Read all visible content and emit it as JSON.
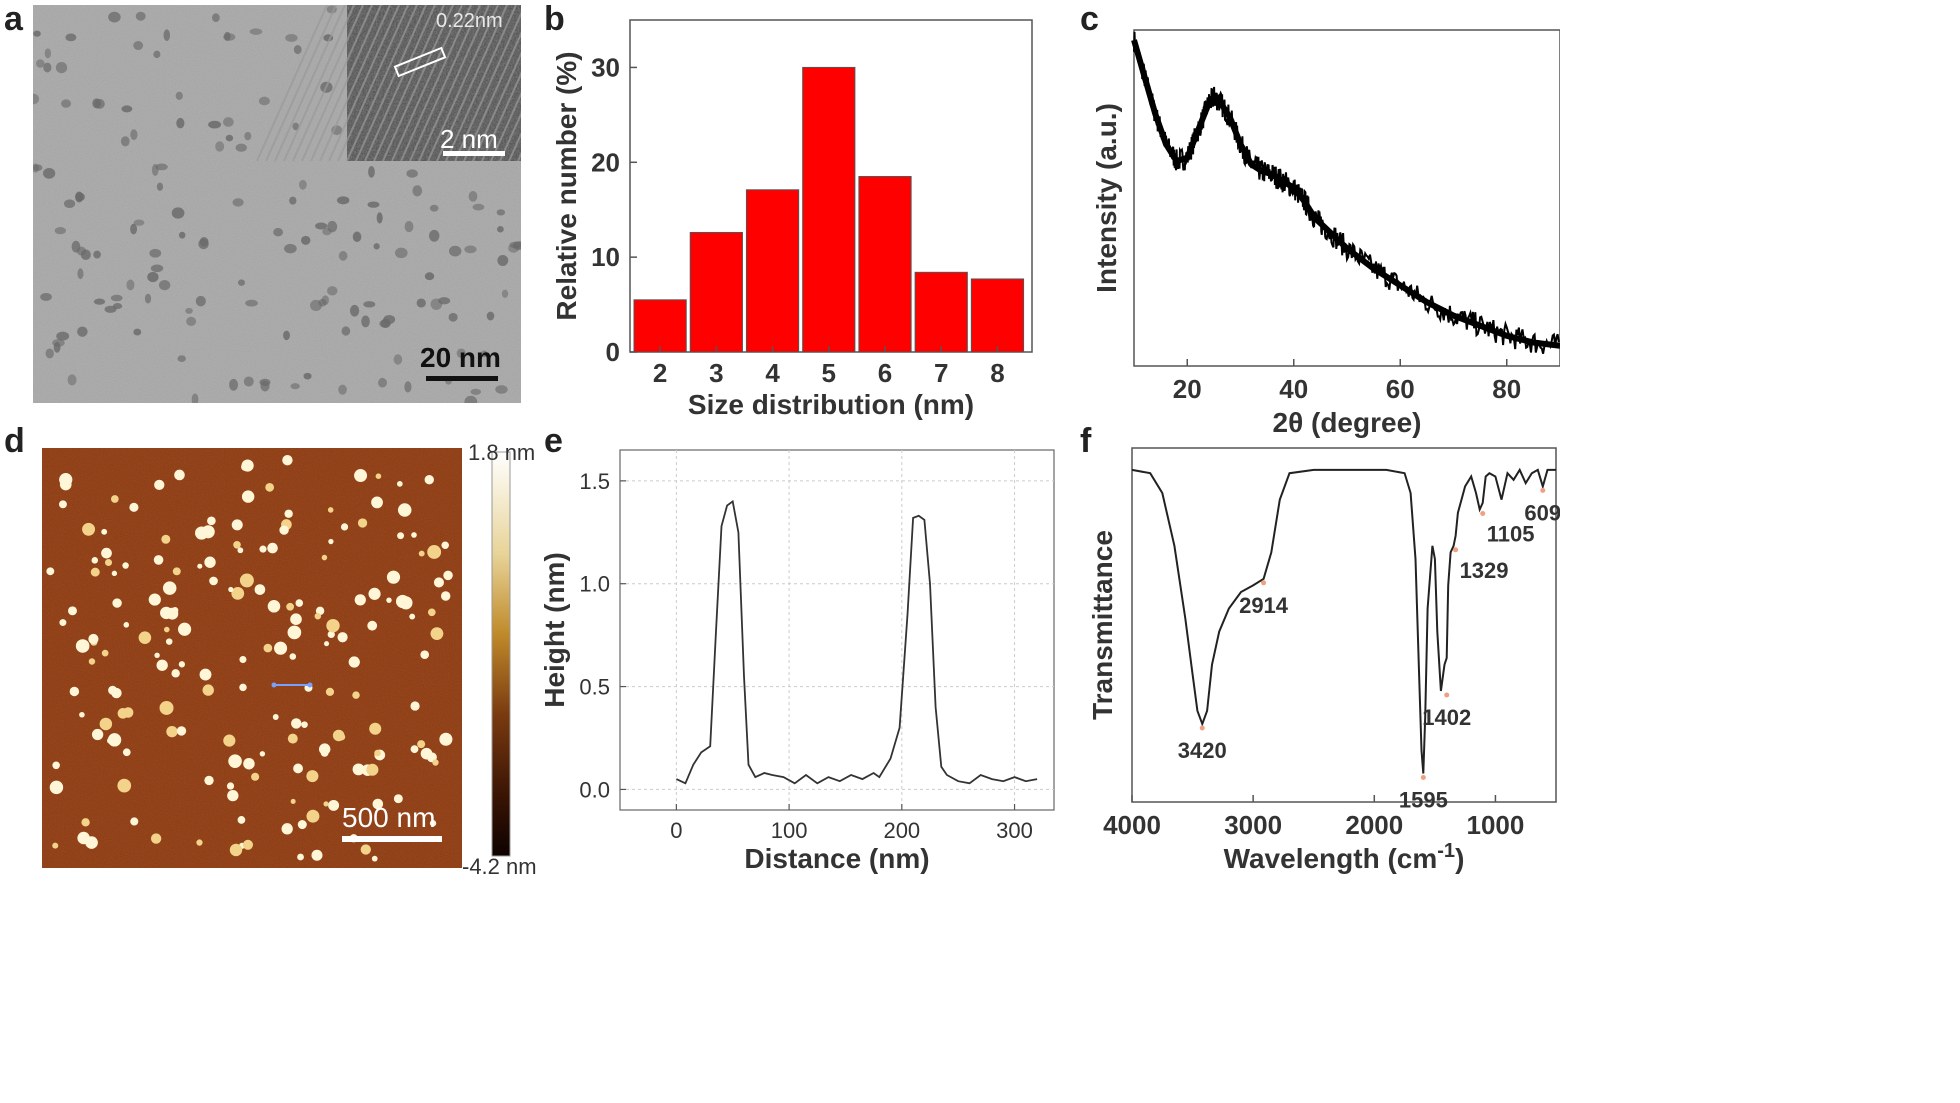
{
  "panels": {
    "a": {
      "letter": "a",
      "scale_bar": "20 nm",
      "inset_scale_bar": "2 nm",
      "inset_spacing": "0.22nm"
    },
    "b": {
      "letter": "b",
      "chart_data": {
        "type": "bar",
        "title": "",
        "xlabel": "Size distribution (nm)",
        "ylabel": "Relative number (%)",
        "categories": [
          "2",
          "3",
          "4",
          "5",
          "6",
          "7",
          "8"
        ],
        "values": [
          5.5,
          12.6,
          17.1,
          30.0,
          18.5,
          8.4,
          7.7
        ],
        "ylim": [
          0,
          35
        ],
        "yticks": [
          0,
          10,
          20,
          30
        ],
        "bar_color": "#ff0000"
      }
    },
    "c": {
      "letter": "c",
      "chart_data": {
        "type": "line",
        "title": "",
        "xlabel": "2θ (degree)",
        "ylabel": "Intensity (a.u.)",
        "xlim": [
          10,
          90
        ],
        "xticks": [
          20,
          40,
          60,
          80
        ],
        "x": [
          10,
          12,
          14,
          16,
          18,
          20,
          22,
          24,
          25,
          26,
          28,
          30,
          32,
          34,
          36,
          38,
          40,
          42,
          44,
          46,
          50,
          55,
          60,
          65,
          70,
          75,
          80,
          85,
          90
        ],
        "y": [
          0.97,
          0.86,
          0.75,
          0.66,
          0.61,
          0.62,
          0.7,
          0.78,
          0.8,
          0.79,
          0.74,
          0.66,
          0.6,
          0.58,
          0.57,
          0.55,
          0.53,
          0.49,
          0.44,
          0.41,
          0.35,
          0.29,
          0.24,
          0.19,
          0.15,
          0.12,
          0.09,
          0.07,
          0.06
        ],
        "line_color": "#000000"
      }
    },
    "d": {
      "letter": "d",
      "scale_bar": "500 nm",
      "colorbar_max": "1.8 nm",
      "colorbar_min": "-4.2 nm"
    },
    "e": {
      "letter": "e",
      "chart_data": {
        "type": "line",
        "title": "",
        "xlabel": "Distance (nm)",
        "ylabel": "Height (nm)",
        "xlim": [
          -50,
          335
        ],
        "ylim": [
          -0.1,
          1.65
        ],
        "xticks": [
          0,
          100,
          200,
          300
        ],
        "yticks": [
          "0.0",
          "0.5",
          "1.0",
          "1.5"
        ],
        "x": [
          0,
          8,
          15,
          22,
          30,
          35,
          40,
          45,
          50,
          55,
          60,
          64,
          70,
          78,
          85,
          95,
          105,
          115,
          125,
          135,
          145,
          155,
          165,
          175,
          180,
          190,
          198,
          205,
          210,
          215,
          220,
          225,
          230,
          235,
          240,
          250,
          260,
          270,
          280,
          290,
          300,
          310,
          320
        ],
        "y": [
          0.05,
          0.03,
          0.12,
          0.18,
          0.21,
          0.75,
          1.28,
          1.38,
          1.4,
          1.25,
          0.55,
          0.12,
          0.06,
          0.08,
          0.07,
          0.06,
          0.03,
          0.07,
          0.03,
          0.06,
          0.04,
          0.07,
          0.05,
          0.08,
          0.06,
          0.15,
          0.3,
          0.85,
          1.32,
          1.33,
          1.31,
          1.0,
          0.4,
          0.11,
          0.07,
          0.04,
          0.03,
          0.07,
          0.05,
          0.04,
          0.06,
          0.04,
          0.05
        ],
        "line_color": "#333333"
      }
    },
    "f": {
      "letter": "f",
      "chart_data": {
        "type": "line",
        "title": "",
        "xlabel": "Wavelength (cm-1)",
        "xlabel_main": "Wavelength (cm",
        "xlabel_sup": "-1",
        "xlabel_close": ")",
        "ylabel": "Transmittance",
        "xlim": [
          4000,
          500
        ],
        "xticks": [
          4000,
          3000,
          2000,
          1000
        ],
        "x": [
          4000,
          3850,
          3750,
          3650,
          3560,
          3500,
          3460,
          3420,
          3380,
          3340,
          3280,
          3200,
          3100,
          3000,
          2914,
          2850,
          2780,
          2700,
          2500,
          2200,
          1900,
          1750,
          1700,
          1660,
          1630,
          1610,
          1595,
          1580,
          1560,
          1520,
          1500,
          1480,
          1450,
          1420,
          1402,
          1390,
          1370,
          1345,
          1329,
          1310,
          1280,
          1250,
          1200,
          1160,
          1130,
          1105,
          1080,
          1050,
          1000,
          950,
          900,
          850,
          800,
          750,
          700,
          650,
          609,
          570,
          500
        ],
        "y": [
          0.97,
          0.96,
          0.9,
          0.74,
          0.52,
          0.35,
          0.24,
          0.2,
          0.24,
          0.38,
          0.48,
          0.55,
          0.6,
          0.62,
          0.64,
          0.72,
          0.88,
          0.96,
          0.97,
          0.97,
          0.97,
          0.96,
          0.9,
          0.7,
          0.35,
          0.12,
          0.05,
          0.22,
          0.55,
          0.74,
          0.7,
          0.48,
          0.3,
          0.38,
          0.4,
          0.62,
          0.72,
          0.74,
          0.77,
          0.84,
          0.88,
          0.92,
          0.95,
          0.9,
          0.85,
          0.87,
          0.95,
          0.96,
          0.95,
          0.88,
          0.96,
          0.94,
          0.97,
          0.93,
          0.96,
          0.97,
          0.92,
          0.97,
          0.97
        ],
        "annotations": [
          {
            "label": "3420",
            "x": 3420,
            "y": 0.2,
            "pos": "below"
          },
          {
            "label": "2914",
            "x": 2914,
            "y": 0.64,
            "pos": "below"
          },
          {
            "label": "1595",
            "x": 1595,
            "y": 0.05,
            "pos": "below"
          },
          {
            "label": "1402",
            "x": 1402,
            "y": 0.3,
            "pos": "below"
          },
          {
            "label": "1329",
            "x": 1329,
            "y": 0.74,
            "pos": "below-right"
          },
          {
            "label": "1105",
            "x": 1105,
            "y": 0.85,
            "pos": "below-right"
          },
          {
            "label": "609",
            "x": 609,
            "y": 0.92,
            "pos": "below"
          }
        ],
        "line_color": "#222222"
      }
    }
  }
}
